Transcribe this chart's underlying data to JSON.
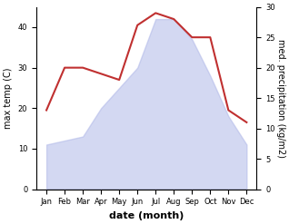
{
  "months": [
    "Jan",
    "Feb",
    "Mar",
    "Apr",
    "May",
    "Jun",
    "Jul",
    "Aug",
    "Sep",
    "Oct",
    "Nov",
    "Dec"
  ],
  "max_temp": [
    11,
    12,
    13,
    20,
    25,
    30,
    42,
    42,
    37,
    28,
    18,
    11
  ],
  "precipitation": [
    13,
    20,
    20,
    19,
    18,
    27,
    29,
    28,
    25,
    25,
    13,
    11
  ],
  "temp_color": "#b0b8e8",
  "temp_fill_alpha": 0.55,
  "precip_color": "#c03030",
  "precip_linewidth": 1.5,
  "ylabel_left": "max temp (C)",
  "ylabel_right": "med. precipitation (kg/m2)",
  "xlabel": "date (month)",
  "ylim_left": [
    0,
    45
  ],
  "ylim_right": [
    0,
    30
  ],
  "yticks_left": [
    0,
    10,
    20,
    30,
    40
  ],
  "yticks_right": [
    0,
    5,
    10,
    15,
    20,
    25,
    30
  ],
  "background_color": "#ffffff",
  "axis_fontsize": 7,
  "tick_fontsize": 6,
  "xlabel_fontsize": 8
}
